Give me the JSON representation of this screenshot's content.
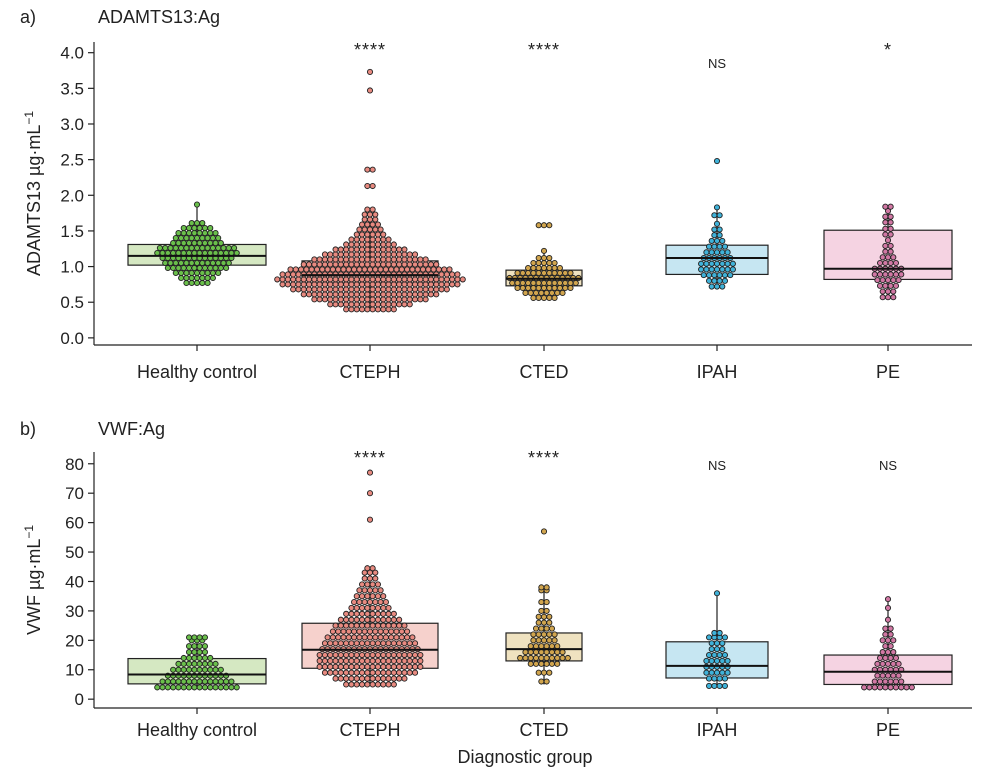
{
  "x_axis_title": "Diagnostic group",
  "chart_data": [
    {
      "type": "box",
      "panel_letter": "a)",
      "title": "ADAMTS13:Ag",
      "ylabel_main": "ADAMTS13 µg·mL",
      "ylabel_sup": "−1",
      "xlabel": "",
      "ylim": [
        -0.1,
        4.15
      ],
      "yticks": [
        "0.0",
        "0.5",
        "1.0",
        "1.5",
        "2.0",
        "2.5",
        "3.0",
        "3.5",
        "4.0"
      ],
      "tick_values": [
        0,
        0.5,
        1,
        1.5,
        2,
        2.5,
        3,
        3.5,
        4
      ],
      "dot_step": 0.055,
      "categories": [
        "Healthy control",
        "CTEPH",
        "CTED",
        "IPAH",
        "PE"
      ],
      "fills": [
        "#d5e8c2",
        "#f6d1cc",
        "#efe2c0",
        "#c6e6f2",
        "#f5d3e2"
      ],
      "dot_colors": [
        "#6abf4b",
        "#e88a80",
        "#d1a54e",
        "#3fb2d9",
        "#d178a4"
      ],
      "significance": [
        "",
        "****",
        "****",
        "NS",
        "*"
      ],
      "boxes": [
        {
          "q1": 1.02,
          "median": 1.15,
          "q3": 1.31,
          "whisker_low": 0.77,
          "whisker_high": 1.87
        },
        {
          "q1": 0.77,
          "median": 0.88,
          "q3": 1.08,
          "whisker_low": 0.4,
          "whisker_high": 1.75
        },
        {
          "q1": 0.73,
          "median": 0.83,
          "q3": 0.95,
          "whisker_low": 0.56,
          "whisker_high": 1.22
        },
        {
          "q1": 0.89,
          "median": 1.12,
          "q3": 1.3,
          "whisker_low": 0.72,
          "whisker_high": 1.83
        },
        {
          "q1": 0.82,
          "median": 0.97,
          "q3": 1.51,
          "whisker_low": 0.57,
          "whisker_high": 1.84
        }
      ],
      "points": [
        [
          [
            0.77,
            5
          ],
          [
            0.84,
            7
          ],
          [
            0.91,
            9
          ],
          [
            0.98,
            12
          ],
          [
            1.05,
            13
          ],
          [
            1.12,
            14
          ],
          [
            1.19,
            16
          ],
          [
            1.26,
            15
          ],
          [
            1.33,
            10
          ],
          [
            1.4,
            9
          ],
          [
            1.47,
            8
          ],
          [
            1.54,
            6
          ],
          [
            1.61,
            3
          ],
          [
            1.87,
            1
          ]
        ],
        [
          [
            0.4,
            10
          ],
          [
            0.47,
            16
          ],
          [
            0.54,
            22
          ],
          [
            0.61,
            26
          ],
          [
            0.68,
            30
          ],
          [
            0.75,
            34
          ],
          [
            0.82,
            36
          ],
          [
            0.89,
            34
          ],
          [
            0.96,
            31
          ],
          [
            1.03,
            26
          ],
          [
            1.1,
            22
          ],
          [
            1.17,
            18
          ],
          [
            1.24,
            14
          ],
          [
            1.31,
            10
          ],
          [
            1.38,
            8
          ],
          [
            1.45,
            6
          ],
          [
            1.52,
            5
          ],
          [
            1.59,
            4
          ],
          [
            1.66,
            3
          ],
          [
            1.73,
            3
          ],
          [
            1.8,
            2
          ],
          [
            2.13,
            2
          ],
          [
            2.36,
            2
          ],
          [
            3.47,
            1
          ],
          [
            3.73,
            1
          ]
        ],
        [
          [
            0.56,
            5
          ],
          [
            0.63,
            8
          ],
          [
            0.7,
            11
          ],
          [
            0.77,
            13
          ],
          [
            0.84,
            14
          ],
          [
            0.91,
            11
          ],
          [
            0.98,
            7
          ],
          [
            1.05,
            5
          ],
          [
            1.12,
            3
          ],
          [
            1.22,
            1
          ],
          [
            1.58,
            3
          ]
        ],
        [
          [
            0.72,
            3
          ],
          [
            0.8,
            4
          ],
          [
            0.88,
            6
          ],
          [
            0.96,
            7
          ],
          [
            1.04,
            7
          ],
          [
            1.12,
            6
          ],
          [
            1.2,
            5
          ],
          [
            1.28,
            4
          ],
          [
            1.36,
            3
          ],
          [
            1.44,
            2
          ],
          [
            1.52,
            2
          ],
          [
            1.6,
            1
          ],
          [
            1.72,
            2
          ],
          [
            1.83,
            1
          ],
          [
            2.48,
            1
          ]
        ],
        [
          [
            0.57,
            3
          ],
          [
            0.65,
            3
          ],
          [
            0.73,
            4
          ],
          [
            0.81,
            5
          ],
          [
            0.89,
            6
          ],
          [
            0.97,
            6
          ],
          [
            1.05,
            4
          ],
          [
            1.13,
            3
          ],
          [
            1.21,
            2
          ],
          [
            1.29,
            2
          ],
          [
            1.37,
            1
          ],
          [
            1.45,
            2
          ],
          [
            1.53,
            2
          ],
          [
            1.62,
            2
          ],
          [
            1.7,
            2
          ],
          [
            1.78,
            1
          ],
          [
            1.84,
            2
          ]
        ]
      ]
    },
    {
      "type": "box",
      "panel_letter": "b)",
      "title": "VWF:Ag",
      "ylabel_main": "VWF µg·mL",
      "ylabel_sup": "−1",
      "xlabel": "Diagnostic group",
      "ylim": [
        -3,
        84
      ],
      "yticks": [
        "0",
        "10",
        "20",
        "30",
        "40",
        "50",
        "60",
        "70",
        "80"
      ],
      "tick_values": [
        0,
        10,
        20,
        30,
        40,
        50,
        60,
        70,
        80
      ],
      "dot_step": 1.15,
      "categories": [
        "Healthy control",
        "CTEPH",
        "CTED",
        "IPAH",
        "PE"
      ],
      "fills": [
        "#d5e8c2",
        "#f6d1cc",
        "#efe2c0",
        "#c6e6f2",
        "#f5d3e2"
      ],
      "dot_colors": [
        "#6abf4b",
        "#e88a80",
        "#d1a54e",
        "#3fb2d9",
        "#d178a4"
      ],
      "significance": [
        "",
        "****",
        "****",
        "NS",
        "NS"
      ],
      "boxes": [
        {
          "q1": 5.2,
          "median": 8.4,
          "q3": 13.8,
          "whisker_low": 3.5,
          "whisker_high": 21
        },
        {
          "q1": 10.5,
          "median": 16.8,
          "q3": 25.8,
          "whisker_low": 4.5,
          "whisker_high": 44
        },
        {
          "q1": 13,
          "median": 17,
          "q3": 22.5,
          "whisker_low": 5,
          "whisker_high": 38
        },
        {
          "q1": 7.2,
          "median": 11.3,
          "q3": 19.5,
          "whisker_low": 4.5,
          "whisker_high": 36
        },
        {
          "q1": 5,
          "median": 9.3,
          "q3": 15,
          "whisker_low": 4,
          "whisker_high": 34
        }
      ],
      "points": [
        [
          [
            4,
            16
          ],
          [
            6,
            14
          ],
          [
            8,
            12
          ],
          [
            10,
            10
          ],
          [
            12,
            8
          ],
          [
            14,
            6
          ],
          [
            16,
            4
          ],
          [
            18,
            4
          ],
          [
            20,
            3
          ],
          [
            21,
            4
          ]
        ],
        [
          [
            5,
            10
          ],
          [
            7,
            14
          ],
          [
            9,
            18
          ],
          [
            11,
            20
          ],
          [
            13,
            20
          ],
          [
            15,
            20
          ],
          [
            17,
            19
          ],
          [
            19,
            18
          ],
          [
            21,
            17
          ],
          [
            23,
            15
          ],
          [
            25,
            14
          ],
          [
            27,
            12
          ],
          [
            29,
            10
          ],
          [
            31,
            8
          ],
          [
            33,
            7
          ],
          [
            35,
            6
          ],
          [
            37,
            5
          ],
          [
            39,
            4
          ],
          [
            41,
            3
          ],
          [
            43,
            3
          ],
          [
            44.5,
            2
          ],
          [
            61,
            1
          ],
          [
            70,
            1
          ],
          [
            77,
            1
          ]
        ],
        [
          [
            6,
            2
          ],
          [
            9,
            3
          ],
          [
            12,
            6
          ],
          [
            14,
            10
          ],
          [
            16,
            8
          ],
          [
            18,
            6
          ],
          [
            20,
            5
          ],
          [
            22,
            5
          ],
          [
            24,
            4
          ],
          [
            26,
            3
          ],
          [
            28,
            3
          ],
          [
            30,
            2
          ],
          [
            33,
            2
          ],
          [
            37,
            2
          ],
          [
            38,
            2
          ],
          [
            57,
            1
          ]
        ],
        [
          [
            4.5,
            4
          ],
          [
            7,
            4
          ],
          [
            9,
            5
          ],
          [
            11,
            5
          ],
          [
            13,
            5
          ],
          [
            15,
            4
          ],
          [
            17,
            3
          ],
          [
            19,
            3
          ],
          [
            21,
            4
          ],
          [
            22.5,
            2
          ],
          [
            36,
            1
          ]
        ],
        [
          [
            4,
            10
          ],
          [
            6,
            6
          ],
          [
            8,
            5
          ],
          [
            10,
            6
          ],
          [
            12,
            5
          ],
          [
            14,
            4
          ],
          [
            16,
            3
          ],
          [
            18,
            2
          ],
          [
            20,
            3
          ],
          [
            22,
            2
          ],
          [
            24,
            2
          ],
          [
            27,
            1
          ],
          [
            31,
            1
          ],
          [
            34,
            1
          ]
        ]
      ]
    }
  ]
}
